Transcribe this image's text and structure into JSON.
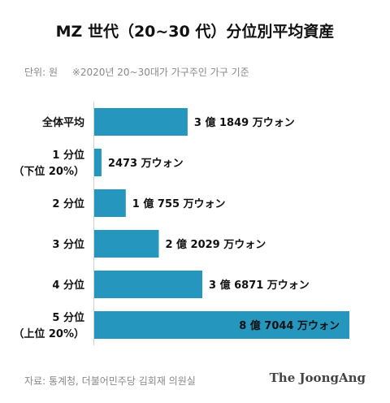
{
  "title": "MZ 世代（20~30 代）分位別平均資産",
  "note": {
    "unit": "단위: 원",
    "basis": "※2020년 20~30대가 가구주인 가구 기준"
  },
  "source": "자료: 통계청, 더불어민주당 김회재 의원실",
  "brand": "The JoongAng",
  "bar_color": "#2596be",
  "chart_data": {
    "type": "bar",
    "orientation": "horizontal",
    "categories": [
      [
        "全体平均"
      ],
      [
        "1 分位",
        "（下位 20%）"
      ],
      [
        "2 分位"
      ],
      [
        "3 分位"
      ],
      [
        "4 分位"
      ],
      [
        "5 分位",
        "（上位 20%）"
      ]
    ],
    "values": [
      318490000,
      24730000,
      107550000,
      220290000,
      368710000,
      870440000
    ],
    "value_labels": [
      "3 億 1849 万ウォン",
      "2473 万ウォン",
      "1 億 755 万ウォン",
      "2 億 2029 万ウォン",
      "3 億 6871 万ウォン",
      "8 億 7044 万ウォン"
    ],
    "value_label_inside": [
      false,
      false,
      false,
      false,
      false,
      true
    ],
    "xlim": [
      0,
      870440000
    ]
  }
}
